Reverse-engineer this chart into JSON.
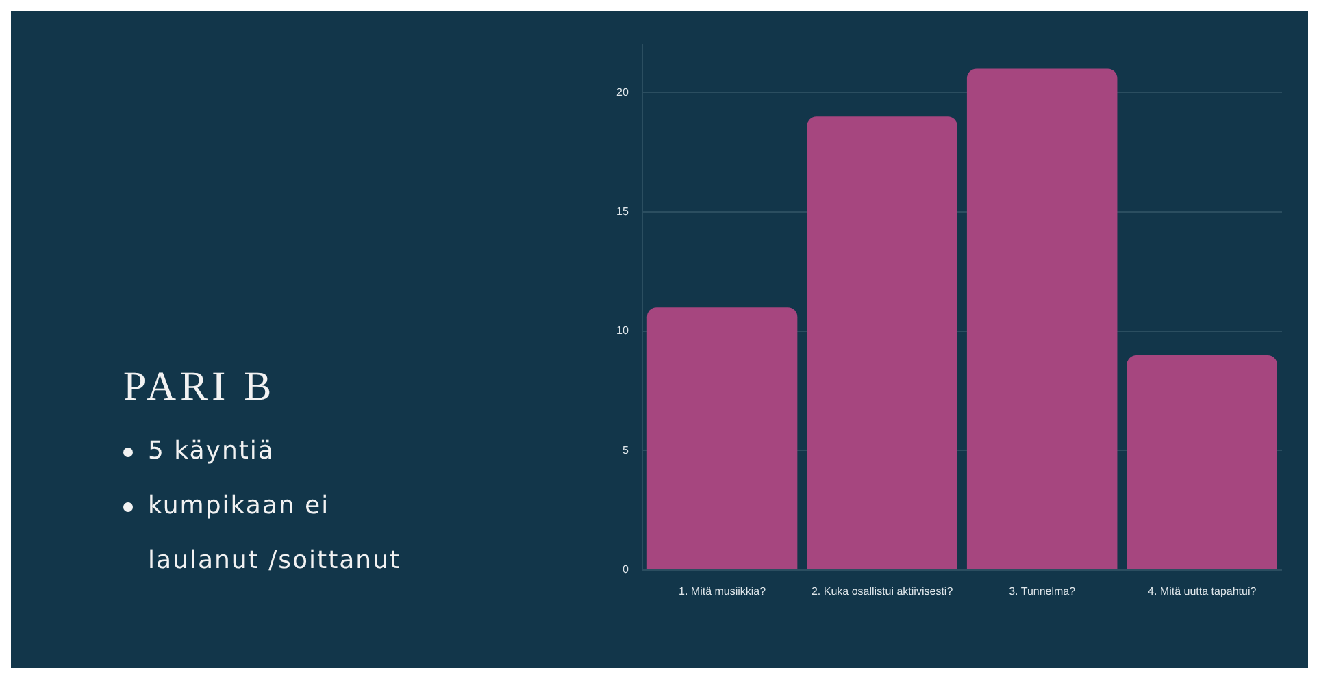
{
  "chart_data": {
    "type": "bar",
    "title": "PARI B",
    "annotations": [
      "5 käyntiä",
      "kumpikaan ei laulanut /soittanut"
    ],
    "categories": [
      "1. Mitä musiikkia?",
      "2. Kuka osallistui aktiivisesti?",
      "3. Tunnelma?",
      "4. Mitä uutta tapahtui?"
    ],
    "values": [
      11,
      19,
      21,
      9
    ],
    "color": "#a6467f",
    "ylim": [
      0,
      22
    ],
    "yticks": [
      0,
      5,
      10,
      15,
      20
    ],
    "grid": "y",
    "legend": false
  }
}
